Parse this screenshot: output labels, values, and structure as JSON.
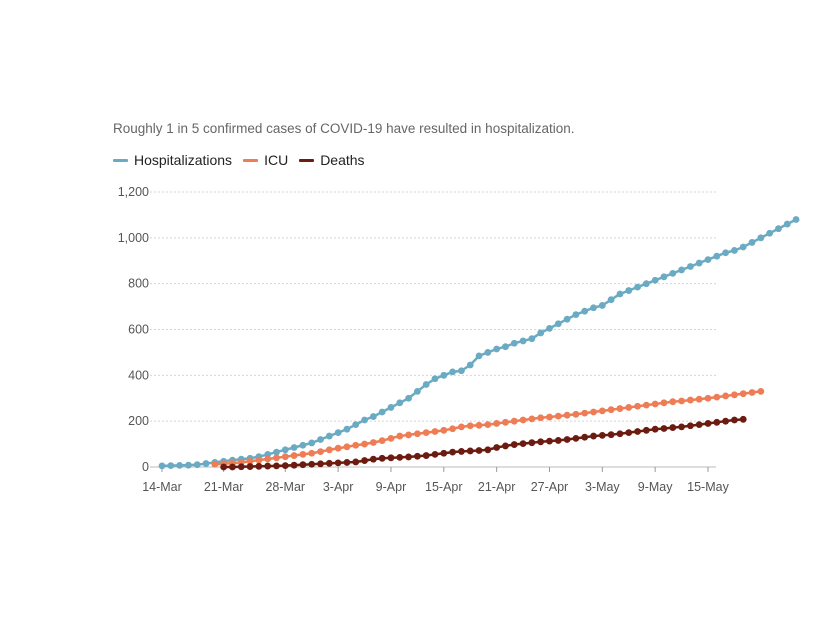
{
  "chart_data": {
    "type": "line",
    "subtitle": "Roughly 1 in 5 confirmed cases of COVID-19 have resulted in hospitalization.",
    "x_tick_labels": [
      "14-Mar",
      "21-Mar",
      "28-Mar",
      "3-Apr",
      "9-Apr",
      "15-Apr",
      "21-Apr",
      "27-Apr",
      "3-May",
      "9-May",
      "15-May"
    ],
    "y_tick_labels": [
      "0",
      "200",
      "400",
      "600",
      "800",
      "1,000",
      "1,200"
    ],
    "ylim": [
      0,
      1200
    ],
    "y_ticks": [
      0,
      200,
      400,
      600,
      800,
      1000,
      1200
    ],
    "x_start": "2020-03-14",
    "x_end": "2020-05-15",
    "x_tick_dates": [
      "2020-03-14",
      "2020-03-21",
      "2020-03-28",
      "2020-04-03",
      "2020-04-09",
      "2020-04-15",
      "2020-04-21",
      "2020-04-27",
      "2020-05-03",
      "2020-05-09",
      "2020-05-15"
    ],
    "grid": "horizontal-dashed",
    "legend_position": "top-left",
    "series": [
      {
        "name": "Hospitalizations",
        "color": "#6aabc3",
        "start": "2020-03-14",
        "values": [
          5,
          6,
          7,
          8,
          10,
          15,
          20,
          25,
          30,
          34,
          38,
          45,
          55,
          65,
          75,
          85,
          95,
          105,
          120,
          135,
          150,
          165,
          185,
          205,
          220,
          240,
          260,
          280,
          300,
          330,
          360,
          385,
          400,
          415,
          420,
          445,
          485,
          500,
          515,
          525,
          540,
          550,
          560,
          585,
          605,
          625,
          645,
          665,
          680,
          695,
          705,
          730,
          755,
          770,
          785,
          800,
          815,
          830,
          845,
          860,
          875,
          890,
          905,
          920,
          935,
          945,
          960,
          980,
          1000,
          1020,
          1040,
          1060,
          1080
        ]
      },
      {
        "name": "ICU",
        "color": "#ee7d55",
        "start": "2020-03-20",
        "values": [
          12,
          14,
          17,
          20,
          25,
          30,
          35,
          40,
          45,
          50,
          55,
          60,
          67,
          75,
          82,
          88,
          95,
          100,
          107,
          115,
          125,
          135,
          140,
          145,
          150,
          155,
          160,
          167,
          175,
          180,
          182,
          185,
          190,
          195,
          200,
          205,
          210,
          215,
          218,
          222,
          226,
          230,
          235,
          240,
          245,
          250,
          255,
          260,
          265,
          270,
          275,
          280,
          285,
          288,
          292,
          296,
          300,
          305,
          310,
          315,
          320,
          325,
          330
        ]
      },
      {
        "name": "Deaths",
        "color": "#6b1b10",
        "start": "2020-03-21",
        "values": [
          0,
          0,
          1,
          2,
          3,
          4,
          5,
          6,
          8,
          10,
          12,
          14,
          16,
          18,
          20,
          22,
          28,
          34,
          38,
          40,
          42,
          44,
          47,
          50,
          55,
          60,
          65,
          68,
          70,
          72,
          75,
          85,
          92,
          98,
          102,
          106,
          110,
          113,
          116,
          120,
          125,
          130,
          135,
          138,
          141,
          145,
          150,
          155,
          160,
          165,
          168,
          172,
          175,
          180,
          185,
          190,
          195,
          200,
          205,
          208
        ]
      }
    ]
  }
}
